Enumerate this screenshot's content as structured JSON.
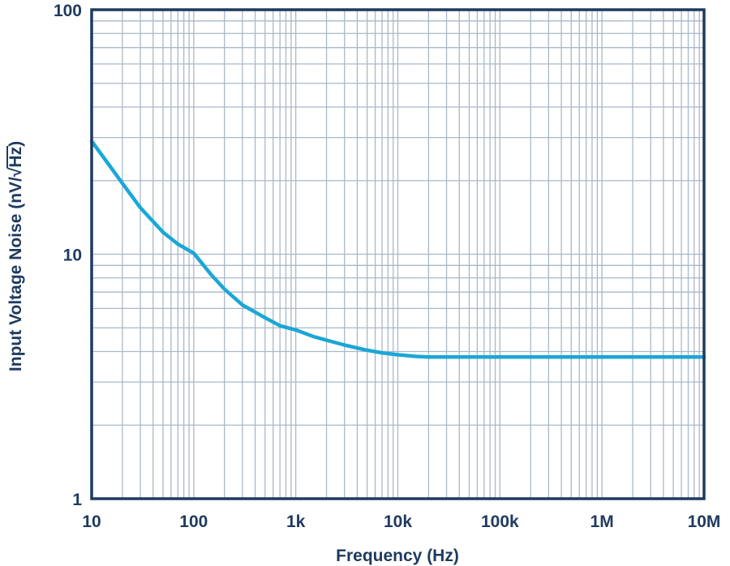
{
  "chart_data": {
    "type": "line",
    "xscale": "log",
    "yscale": "log",
    "xlim": [
      10,
      10000000
    ],
    "ylim": [
      1,
      100
    ],
    "grid": true,
    "xlabel": "Frequency (Hz)",
    "ylabel_prefix": "Input Voltage Noise (nV/√",
    "ylabel_radicand": "Hz",
    "ylabel_suffix": ")",
    "x_ticks": [
      {
        "value": 10,
        "label": "10"
      },
      {
        "value": 100,
        "label": "100"
      },
      {
        "value": 1000,
        "label": "1k"
      },
      {
        "value": 10000,
        "label": "10k"
      },
      {
        "value": 100000,
        "label": "100k"
      },
      {
        "value": 1000000,
        "label": "1M"
      },
      {
        "value": 10000000,
        "label": "10M"
      }
    ],
    "y_ticks": [
      {
        "value": 1,
        "label": "1"
      },
      {
        "value": 10,
        "label": "10"
      },
      {
        "value": 100,
        "label": "100"
      }
    ],
    "series": [
      {
        "color": "#1aa7d6",
        "x": [
          10,
          15,
          20,
          30,
          50,
          70,
          100,
          150,
          200,
          300,
          500,
          700,
          1000,
          1500,
          2000,
          3000,
          5000,
          7000,
          10000,
          15000,
          20000,
          30000,
          50000,
          100000,
          1000000,
          10000000
        ],
        "y": [
          29,
          23,
          19.5,
          15.5,
          12.3,
          11,
          10.1,
          8.2,
          7.2,
          6.2,
          5.5,
          5.1,
          4.9,
          4.6,
          4.45,
          4.25,
          4.05,
          3.95,
          3.88,
          3.82,
          3.8,
          3.8,
          3.8,
          3.8,
          3.8,
          3.8
        ]
      }
    ]
  }
}
